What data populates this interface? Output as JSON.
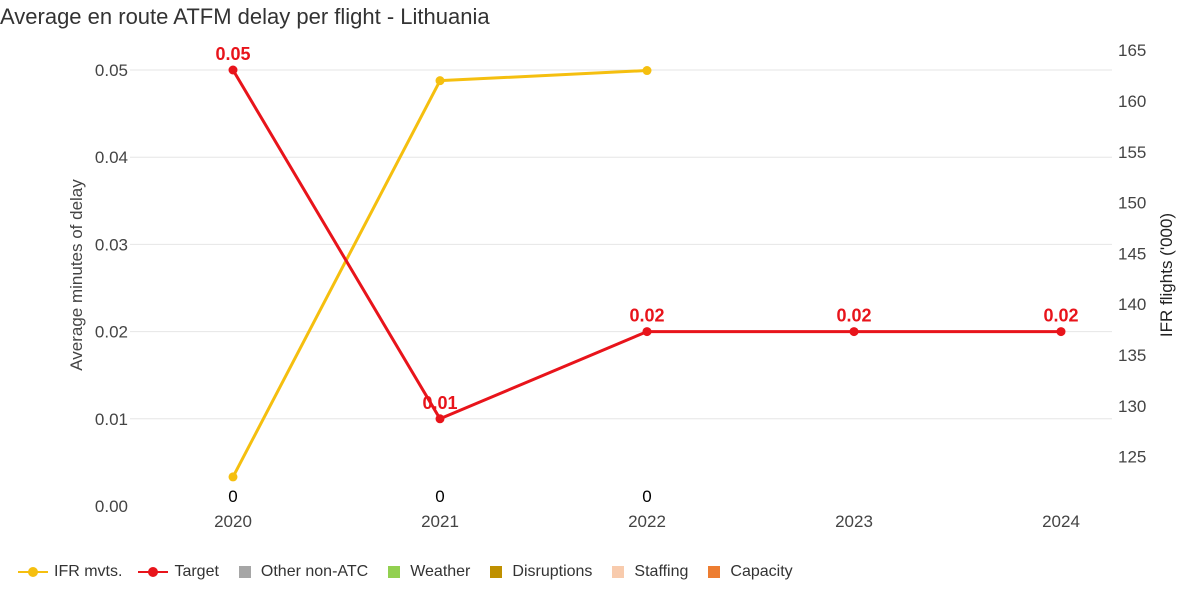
{
  "chart_data": {
    "type": "line",
    "title": "Average en route ATFM delay per flight - Lithuania",
    "categories": [
      "2020",
      "2021",
      "2022",
      "2023",
      "2024"
    ],
    "y_left": {
      "label": "Average minutes of delay",
      "range": [
        0,
        0.05
      ],
      "ticks": [
        "0.00",
        "0.01",
        "0.02",
        "0.03",
        "0.04",
        "0.05"
      ]
    },
    "y_right": {
      "label": "IFR flights ('000)",
      "range": [
        121,
        165
      ],
      "ticks": [
        "125",
        "130",
        "135",
        "140",
        "145",
        "150",
        "155",
        "160",
        "165"
      ]
    },
    "grid": true,
    "legend_position": "bottom-left",
    "series": [
      {
        "name": "IFR mvts.",
        "axis": "right",
        "color": "#f5bf0f",
        "values": [
          123.0,
          162.0,
          163.0,
          null,
          null
        ]
      },
      {
        "name": "Target",
        "axis": "left",
        "color": "#e8141b",
        "values": [
          0.05,
          0.01,
          0.02,
          0.02,
          0.02
        ],
        "labels": [
          "0.05",
          "0.01",
          "0.02",
          "0.02",
          "0.02"
        ]
      }
    ],
    "bar_value_labels": [
      "0",
      "0",
      "0",
      null,
      null
    ]
  },
  "legend": [
    {
      "name": "IFR mvts.",
      "symbol": "line",
      "color": "#f5bf0f"
    },
    {
      "name": "Target",
      "symbol": "line",
      "color": "#e8141b"
    },
    {
      "name": "Other non-ATC",
      "symbol": "square",
      "color": "#a6a6a6"
    },
    {
      "name": "Weather",
      "symbol": "square",
      "color": "#92d050"
    },
    {
      "name": "Disruptions",
      "symbol": "square",
      "color": "#bf9000"
    },
    {
      "name": "Staffing",
      "symbol": "square",
      "color": "#f8cbad"
    },
    {
      "name": "Capacity",
      "symbol": "square",
      "color": "#ed7d31"
    }
  ]
}
